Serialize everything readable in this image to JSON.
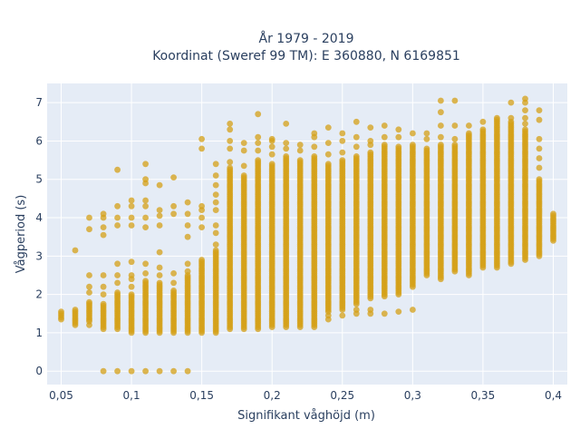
{
  "chart_data": {
    "type": "scatter",
    "title_lines": [
      "År 1979 - 2019",
      "Koordinat (Sweref 99 TM): E 360880, N 6169851"
    ],
    "xlabel": "Signifikant våghöjd (m)",
    "ylabel": "Vågperiod (s)",
    "xlim": [
      0.04,
      0.41
    ],
    "ylim": [
      -0.35,
      7.5
    ],
    "x_ticks": [
      {
        "value": 0.05,
        "label": "0,05"
      },
      {
        "value": 0.1,
        "label": "0,1"
      },
      {
        "value": 0.15,
        "label": "0,15"
      },
      {
        "value": 0.2,
        "label": "0,2"
      },
      {
        "value": 0.25,
        "label": "0,25"
      },
      {
        "value": 0.3,
        "label": "0,3"
      },
      {
        "value": 0.35,
        "label": "0,35"
      },
      {
        "value": 0.4,
        "label": "0,4"
      }
    ],
    "y_ticks": [
      {
        "value": 0,
        "label": "0"
      },
      {
        "value": 1,
        "label": "1"
      },
      {
        "value": 2,
        "label": "2"
      },
      {
        "value": 3,
        "label": "3"
      },
      {
        "value": 4,
        "label": "4"
      },
      {
        "value": 5,
        "label": "5"
      },
      {
        "value": 6,
        "label": "6"
      },
      {
        "value": 7,
        "label": "7"
      }
    ],
    "grid": true,
    "legend": "none",
    "colors": {
      "marker": "#d4a017",
      "plot_bg": "#e5ecf6",
      "grid": "#ffffff",
      "text": "#2a3f5f"
    },
    "columns": [
      {
        "x": 0.05,
        "ranges": [
          [
            1.4,
            1.55
          ]
        ],
        "points": [
          1.35
        ]
      },
      {
        "x": 0.06,
        "ranges": [
          [
            1.25,
            1.6
          ]
        ],
        "points": [
          1.2,
          3.15
        ]
      },
      {
        "x": 0.07,
        "ranges": [
          [
            1.3,
            1.8
          ]
        ],
        "points": [
          1.2,
          2.05,
          2.2,
          2.5,
          3.7,
          4.0
        ]
      },
      {
        "x": 0.08,
        "ranges": [
          [
            1.1,
            1.75
          ]
        ],
        "points": [
          0.0,
          2.0,
          2.2,
          2.5,
          3.55,
          3.75,
          4.0,
          4.1
        ]
      },
      {
        "x": 0.09,
        "ranges": [
          [
            1.1,
            2.05
          ]
        ],
        "points": [
          0.0,
          2.3,
          2.5,
          2.8,
          3.8,
          4.0,
          4.3,
          5.25
        ]
      },
      {
        "x": 0.1,
        "ranges": [
          [
            1.0,
            2.0
          ]
        ],
        "points": [
          0.0,
          2.2,
          2.4,
          2.5,
          2.85,
          3.8,
          4.0,
          4.3,
          4.45
        ]
      },
      {
        "x": 0.11,
        "ranges": [
          [
            1.0,
            2.35
          ]
        ],
        "points": [
          0.0,
          2.55,
          2.8,
          3.75,
          4.0,
          4.3,
          4.45,
          4.9,
          5.0,
          5.4
        ]
      },
      {
        "x": 0.12,
        "ranges": [
          [
            1.0,
            2.3
          ]
        ],
        "points": [
          0.0,
          2.5,
          2.7,
          3.1,
          3.8,
          4.05,
          4.2,
          4.85
        ]
      },
      {
        "x": 0.13,
        "ranges": [
          [
            1.0,
            2.1
          ]
        ],
        "points": [
          0.0,
          2.3,
          2.55,
          4.1,
          4.3,
          5.05
        ]
      },
      {
        "x": 0.14,
        "ranges": [
          [
            1.0,
            2.5
          ]
        ],
        "points": [
          0.0,
          2.6,
          2.8,
          3.5,
          3.8,
          4.1,
          4.4
        ]
      },
      {
        "x": 0.15,
        "ranges": [
          [
            1.0,
            2.9
          ]
        ],
        "points": [
          3.75,
          4.0,
          4.2,
          4.3,
          5.8,
          6.05
        ]
      },
      {
        "x": 0.16,
        "ranges": [
          [
            1.0,
            3.15
          ]
        ],
        "points": [
          3.3,
          3.6,
          3.8,
          4.2,
          4.4,
          4.6,
          4.85,
          5.1,
          5.4
        ]
      },
      {
        "x": 0.17,
        "ranges": [
          [
            1.1,
            5.3
          ]
        ],
        "points": [
          5.45,
          5.8,
          6.0,
          6.3,
          6.45
        ]
      },
      {
        "x": 0.18,
        "ranges": [
          [
            1.1,
            5.1
          ]
        ],
        "points": [
          5.35,
          5.75,
          5.95
        ]
      },
      {
        "x": 0.19,
        "ranges": [
          [
            1.1,
            5.5
          ]
        ],
        "points": [
          5.75,
          5.95,
          6.1,
          6.7
        ]
      },
      {
        "x": 0.2,
        "ranges": [
          [
            1.15,
            5.4
          ]
        ],
        "points": [
          5.65,
          5.85,
          6.0,
          6.05
        ]
      },
      {
        "x": 0.21,
        "ranges": [
          [
            1.15,
            5.6
          ]
        ],
        "points": [
          5.8,
          5.95,
          6.45
        ]
      },
      {
        "x": 0.22,
        "ranges": [
          [
            1.15,
            5.5
          ]
        ],
        "points": [
          5.75,
          5.9
        ]
      },
      {
        "x": 0.23,
        "ranges": [
          [
            1.15,
            5.6
          ]
        ],
        "points": [
          5.85,
          6.1,
          6.2
        ]
      },
      {
        "x": 0.24,
        "ranges": [
          [
            1.55,
            5.4
          ]
        ],
        "points": [
          1.35,
          1.45,
          5.65,
          5.95,
          6.35
        ]
      },
      {
        "x": 0.25,
        "ranges": [
          [
            1.6,
            5.5
          ]
        ],
        "points": [
          1.45,
          5.7,
          6.0,
          6.2
        ]
      },
      {
        "x": 0.26,
        "ranges": [
          [
            1.75,
            5.6
          ]
        ],
        "points": [
          1.5,
          1.6,
          5.85,
          6.1,
          6.5
        ]
      },
      {
        "x": 0.27,
        "ranges": [
          [
            1.9,
            5.7
          ]
        ],
        "points": [
          1.5,
          1.6,
          5.9,
          6.0,
          6.35
        ]
      },
      {
        "x": 0.28,
        "ranges": [
          [
            1.95,
            5.9
          ]
        ],
        "points": [
          1.5,
          6.1,
          6.4
        ]
      },
      {
        "x": 0.29,
        "ranges": [
          [
            2.0,
            5.85
          ]
        ],
        "points": [
          1.55,
          6.1,
          6.3
        ]
      },
      {
        "x": 0.3,
        "ranges": [
          [
            2.2,
            5.9
          ]
        ],
        "points": [
          1.6,
          6.2
        ]
      },
      {
        "x": 0.31,
        "ranges": [
          [
            2.5,
            5.8
          ]
        ],
        "points": [
          6.05,
          6.2
        ]
      },
      {
        "x": 0.32,
        "ranges": [
          [
            2.4,
            5.9
          ]
        ],
        "points": [
          6.1,
          6.4,
          6.75,
          7.05
        ]
      },
      {
        "x": 0.33,
        "ranges": [
          [
            2.6,
            5.9
          ]
        ],
        "points": [
          6.05,
          6.4,
          7.05
        ]
      },
      {
        "x": 0.34,
        "ranges": [
          [
            2.5,
            6.2
          ]
        ],
        "points": [
          6.4
        ]
      },
      {
        "x": 0.35,
        "ranges": [
          [
            2.7,
            6.3
          ]
        ],
        "points": [
          6.5
        ]
      },
      {
        "x": 0.36,
        "ranges": [
          [
            2.7,
            6.6
          ]
        ],
        "points": []
      },
      {
        "x": 0.37,
        "ranges": [
          [
            2.8,
            6.5
          ]
        ],
        "points": [
          6.6,
          7.0
        ]
      },
      {
        "x": 0.38,
        "ranges": [
          [
            2.9,
            6.3
          ]
        ],
        "points": [
          6.45,
          6.6,
          6.8,
          7.0,
          7.1
        ]
      },
      {
        "x": 0.39,
        "ranges": [
          [
            3.0,
            5.0
          ]
        ],
        "points": [
          5.3,
          5.55,
          5.8,
          6.05,
          6.55,
          6.8
        ]
      },
      {
        "x": 0.4,
        "ranges": [
          [
            3.4,
            4.1
          ]
        ],
        "points": []
      }
    ]
  }
}
